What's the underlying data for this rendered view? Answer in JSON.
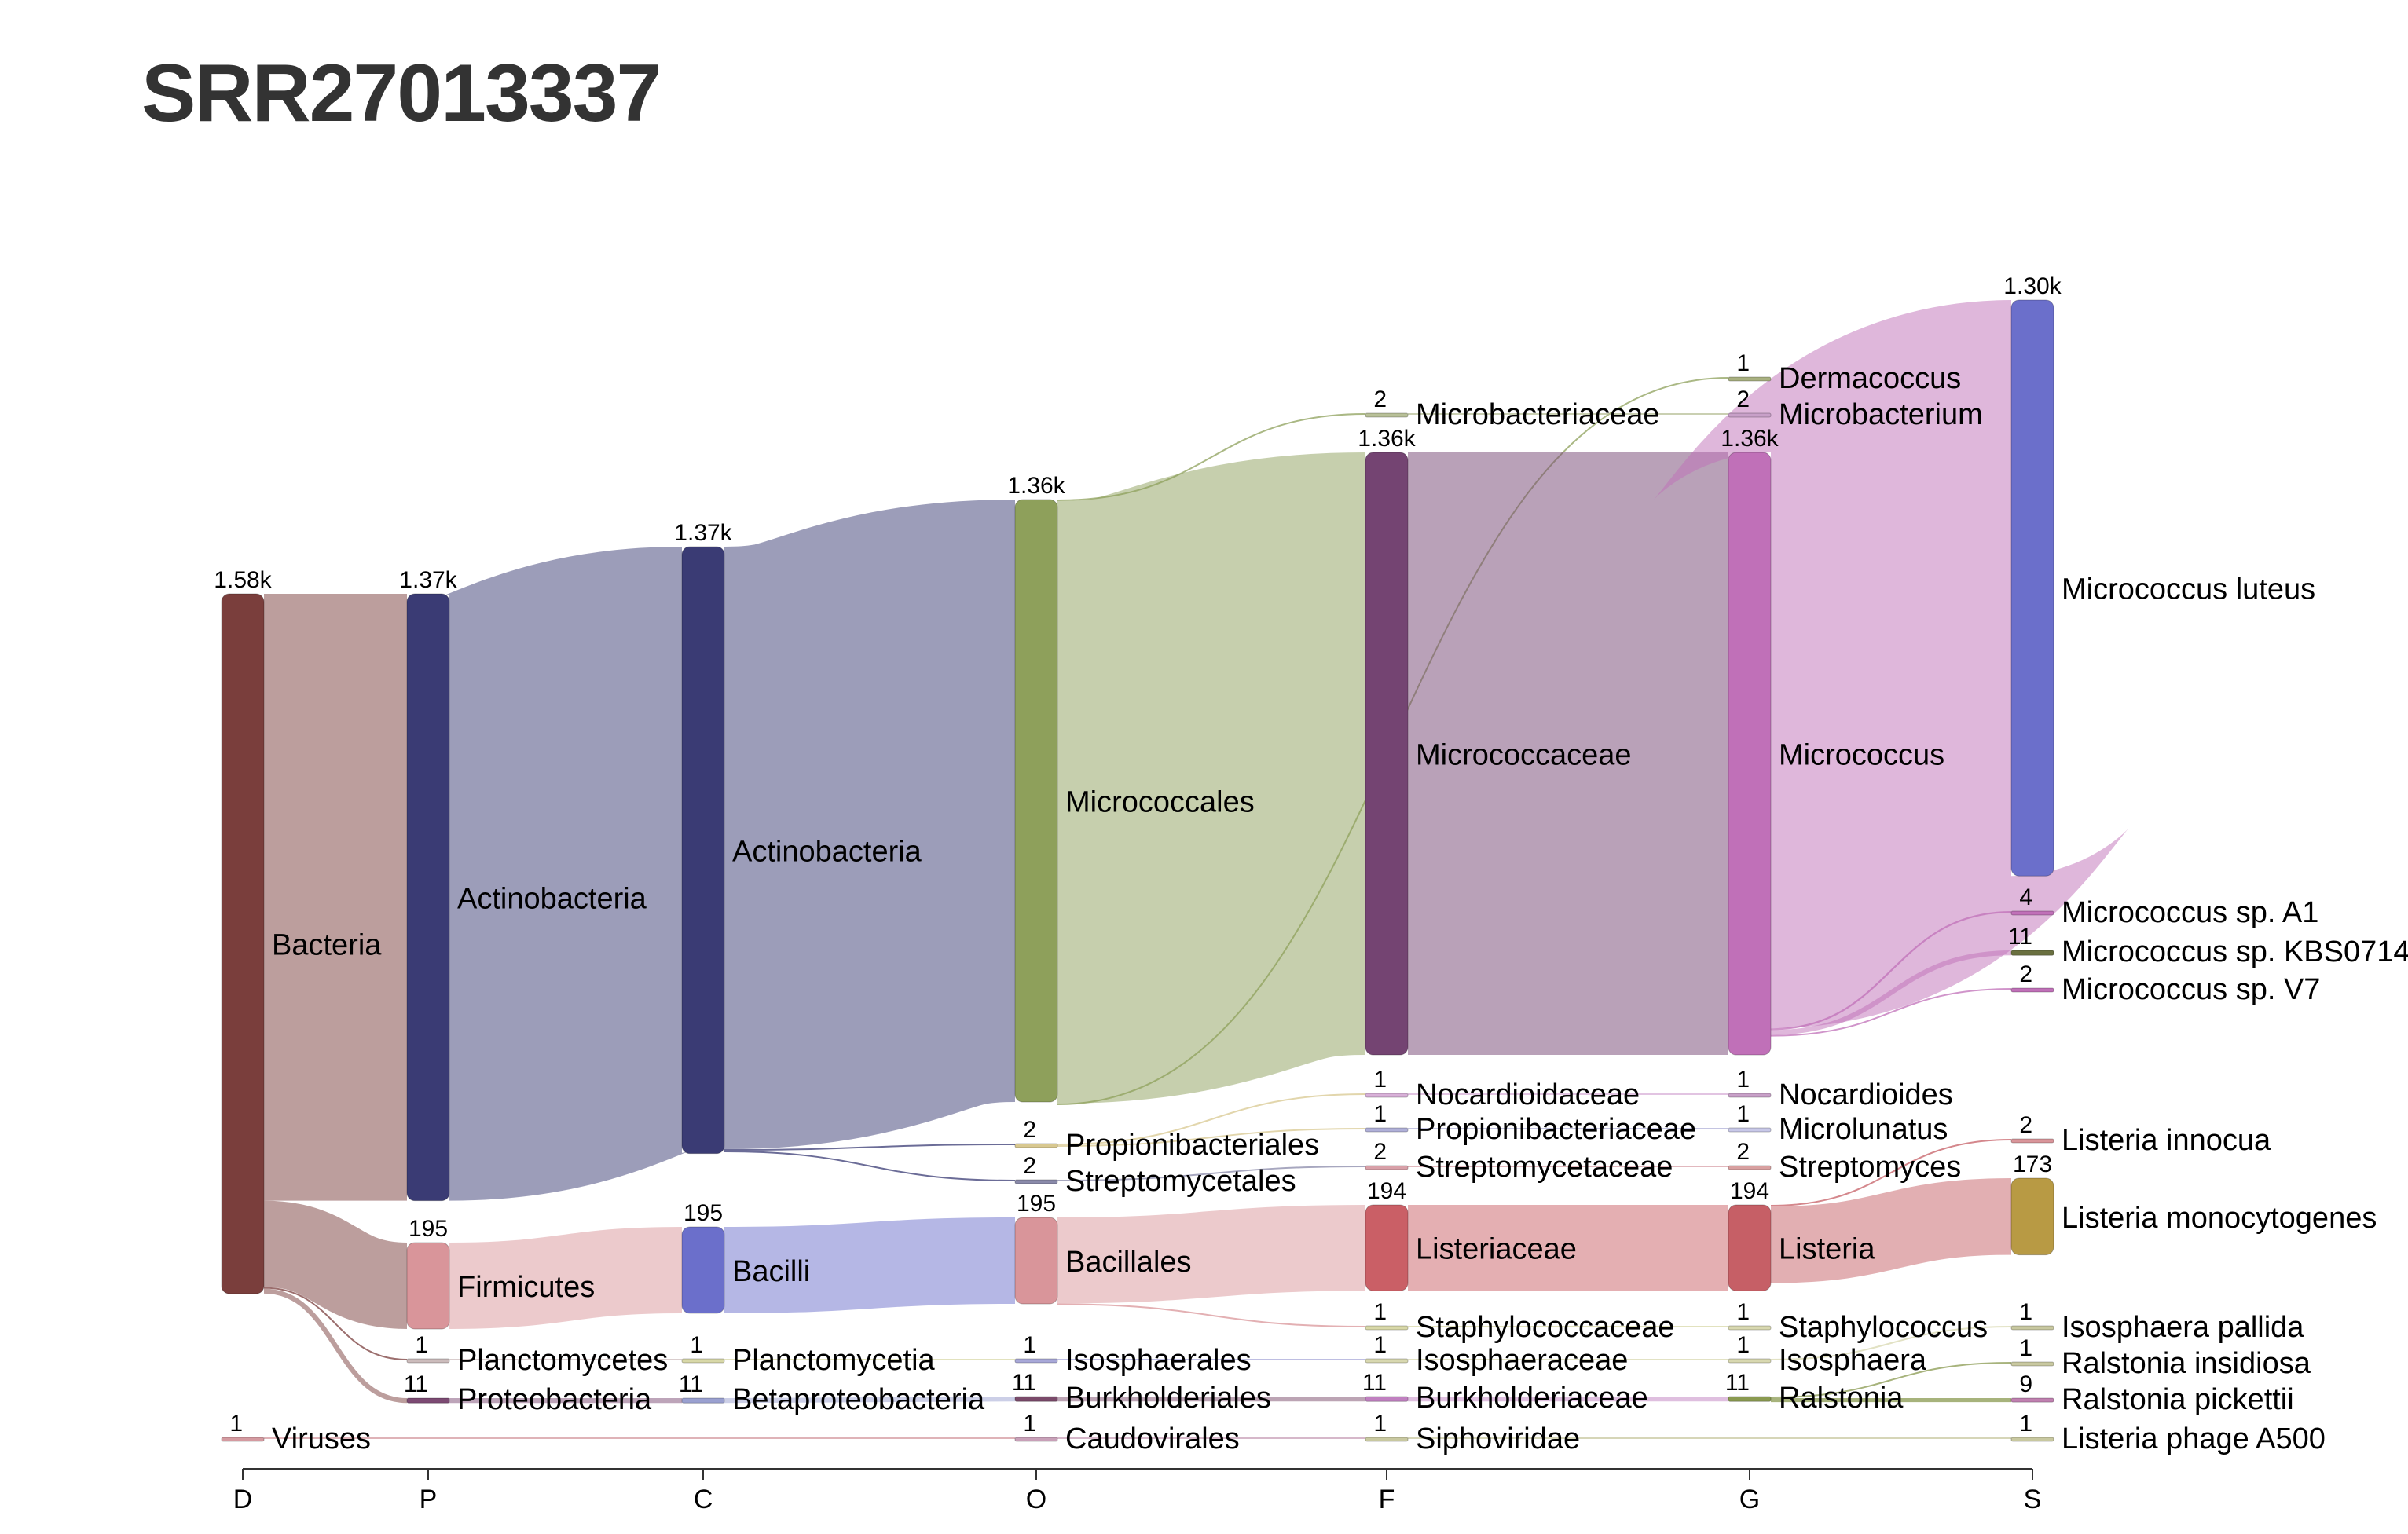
{
  "title": "SRR27013337",
  "axis": {
    "levels": [
      "D",
      "P",
      "C",
      "O",
      "F",
      "G",
      "S"
    ]
  },
  "colors": {
    "Bacteria": "#7a3e3c",
    "Viruses": "#d49aa0",
    "Actinobacteria_P": "#3a3b74",
    "Firmicutes": "#d9959a",
    "Planctomycetes": "#ccbcbc",
    "Proteobacteria": "#7c4a73",
    "Actinobacteria_C": "#3a3b74",
    "Bacilli": "#6b6fcb",
    "Planctomycetia": "#d8d8a8",
    "Betaproteobacteria": "#9aa0d0",
    "Micrococcales": "#8ea05b",
    "Bacillales": "#d9959a",
    "Propionibacteriales": "#d8c890",
    "Streptomycetales": "#8a8aaa",
    "Isosphaerales": "#a8a8d8",
    "Burkholderiales": "#7a4a6a",
    "Caudovirales": "#c8a0b8",
    "Micrococcaceae": "#744472",
    "Listeriaceae": "#ca5f66",
    "Microbacteriaceae": "#b8c098",
    "Nocardioidaceae": "#d8b0d8",
    "Propionibacteriaceae": "#b0b0d8",
    "Streptomycetaceae": "#d8a0a8",
    "Staphylococcaceae": "#d8d8a8",
    "Isosphaeraceae": "#d8d8b0",
    "Burkholderiaceae": "#c080c0",
    "Siphoviridae": "#c8c8a0",
    "Micrococcus": "#c070b8",
    "Listeria": "#c65f66",
    "Dermacoccus": "#a8b080",
    "Microbacterium": "#c8a0c8",
    "Nocardioides": "#c8a0c8",
    "Microlunatus": "#c8c8e8",
    "Streptomyces": "#d8a0a0",
    "Staphylococcus": "#d8d8b0",
    "Isosphaera": "#d8d8b0",
    "Ralstonia": "#8a9a50",
    "Micrococcus luteus": "#6b6fcb",
    "Listeria monocytogenes": "#b89a44",
    "Micrococcus sp. A1": "#c070b8",
    "Micrococcus sp. KBS0714": "#6a7040",
    "Micrococcus sp. V7": "#c070b8",
    "Listeria innocua": "#d9959a",
    "Isosphaera pallida": "#c8c8a0",
    "Ralstonia insidiosa": "#c8c8a0",
    "Ralstonia pickettii": "#c080b0",
    "Listeria phage A500": "#c8c8a0"
  },
  "nodes": [
    {
      "id": "Bacteria",
      "label": "Bacteria",
      "level": 0,
      "value": 1580,
      "count": "1.58k"
    },
    {
      "id": "Viruses",
      "label": "Viruses",
      "level": 0,
      "value": 1,
      "count": "1"
    },
    {
      "id": "Actinobacteria_P",
      "label": "Actinobacteria",
      "level": 1,
      "value": 1370,
      "count": "1.37k"
    },
    {
      "id": "Firmicutes",
      "label": "Firmicutes",
      "level": 1,
      "value": 195,
      "count": "195"
    },
    {
      "id": "Planctomycetes",
      "label": "Planctomycetes",
      "level": 1,
      "value": 1,
      "count": "1"
    },
    {
      "id": "Proteobacteria",
      "label": "Proteobacteria",
      "level": 1,
      "value": 11,
      "count": "11"
    },
    {
      "id": "Actinobacteria_C",
      "label": "Actinobacteria",
      "level": 2,
      "value": 1370,
      "count": "1.37k"
    },
    {
      "id": "Bacilli",
      "label": "Bacilli",
      "level": 2,
      "value": 195,
      "count": "195"
    },
    {
      "id": "Planctomycetia",
      "label": "Planctomycetia",
      "level": 2,
      "value": 1,
      "count": "1"
    },
    {
      "id": "Betaproteobacteria",
      "label": "Betaproteobacteria",
      "level": 2,
      "value": 11,
      "count": "11"
    },
    {
      "id": "Micrococcales",
      "label": "Micrococcales",
      "level": 3,
      "value": 1360,
      "count": "1.36k"
    },
    {
      "id": "Propionibacteriales",
      "label": "Propionibacteriales",
      "level": 3,
      "value": 2,
      "count": "2"
    },
    {
      "id": "Streptomycetales",
      "label": "Streptomycetales",
      "level": 3,
      "value": 2,
      "count": "2"
    },
    {
      "id": "Bacillales",
      "label": "Bacillales",
      "level": 3,
      "value": 195,
      "count": "195"
    },
    {
      "id": "Isosphaerales",
      "label": "Isosphaerales",
      "level": 3,
      "value": 1,
      "count": "1"
    },
    {
      "id": "Burkholderiales",
      "label": "Burkholderiales",
      "level": 3,
      "value": 11,
      "count": "11"
    },
    {
      "id": "Caudovirales",
      "label": "Caudovirales",
      "level": 3,
      "value": 1,
      "count": "1"
    },
    {
      "id": "Microbacteriaceae",
      "label": "Microbacteriaceae",
      "level": 4,
      "value": 2,
      "count": "2"
    },
    {
      "id": "Micrococcaceae",
      "label": "Micrococcaceae",
      "level": 4,
      "value": 1360,
      "count": "1.36k"
    },
    {
      "id": "Nocardioidaceae",
      "label": "Nocardioidaceae",
      "level": 4,
      "value": 1,
      "count": "1"
    },
    {
      "id": "Propionibacteriaceae",
      "label": "Propionibacteriaceae",
      "level": 4,
      "value": 1,
      "count": "1"
    },
    {
      "id": "Streptomycetaceae",
      "label": "Streptomycetaceae",
      "level": 4,
      "value": 2,
      "count": "2"
    },
    {
      "id": "Listeriaceae",
      "label": "Listeriaceae",
      "level": 4,
      "value": 194,
      "count": "194"
    },
    {
      "id": "Staphylococcaceae",
      "label": "Staphylococcaceae",
      "level": 4,
      "value": 1,
      "count": "1"
    },
    {
      "id": "Isosphaeraceae",
      "label": "Isosphaeraceae",
      "level": 4,
      "value": 1,
      "count": "1"
    },
    {
      "id": "Burkholderiaceae",
      "label": "Burkholderiaceae",
      "level": 4,
      "value": 11,
      "count": "11"
    },
    {
      "id": "Siphoviridae",
      "label": "Siphoviridae",
      "level": 4,
      "value": 1,
      "count": "1"
    },
    {
      "id": "Dermacoccus",
      "label": "Dermacoccus",
      "level": 5,
      "value": 1,
      "count": "1"
    },
    {
      "id": "Microbacterium",
      "label": "Microbacterium",
      "level": 5,
      "value": 2,
      "count": "2"
    },
    {
      "id": "Micrococcus",
      "label": "Micrococcus",
      "level": 5,
      "value": 1360,
      "count": "1.36k"
    },
    {
      "id": "Nocardioides",
      "label": "Nocardioides",
      "level": 5,
      "value": 1,
      "count": "1"
    },
    {
      "id": "Microlunatus",
      "label": "Microlunatus",
      "level": 5,
      "value": 1,
      "count": "1"
    },
    {
      "id": "Streptomyces",
      "label": "Streptomyces",
      "level": 5,
      "value": 2,
      "count": "2"
    },
    {
      "id": "Listeria",
      "label": "Listeria",
      "level": 5,
      "value": 194,
      "count": "194"
    },
    {
      "id": "Staphylococcus",
      "label": "Staphylococcus",
      "level": 5,
      "value": 1,
      "count": "1"
    },
    {
      "id": "Isosphaera",
      "label": "Isosphaera",
      "level": 5,
      "value": 1,
      "count": "1"
    },
    {
      "id": "Ralstonia",
      "label": "Ralstonia",
      "level": 5,
      "value": 11,
      "count": "11"
    },
    {
      "id": "Micrococcus luteus",
      "label": "Micrococcus luteus",
      "level": 6,
      "value": 1300,
      "count": "1.30k"
    },
    {
      "id": "Micrococcus sp. A1",
      "label": "Micrococcus sp. A1",
      "level": 6,
      "value": 4,
      "count": "4"
    },
    {
      "id": "Micrococcus sp. KBS0714",
      "label": "Micrococcus sp. KBS0714",
      "level": 6,
      "value": 11,
      "count": "11"
    },
    {
      "id": "Micrococcus sp. V7",
      "label": "Micrococcus sp. V7",
      "level": 6,
      "value": 2,
      "count": "2"
    },
    {
      "id": "Listeria innocua",
      "label": "Listeria innocua",
      "level": 6,
      "value": 2,
      "count": "2"
    },
    {
      "id": "Listeria monocytogenes",
      "label": "Listeria monocytogenes",
      "level": 6,
      "value": 173,
      "count": "173"
    },
    {
      "id": "Isosphaera pallida",
      "label": "Isosphaera pallida",
      "level": 6,
      "value": 1,
      "count": "1"
    },
    {
      "id": "Ralstonia insidiosa",
      "label": "Ralstonia insidiosa",
      "level": 6,
      "value": 1,
      "count": "1"
    },
    {
      "id": "Ralstonia pickettii",
      "label": "Ralstonia pickettii",
      "level": 6,
      "value": 9,
      "count": "9"
    },
    {
      "id": "Listeria phage A500",
      "label": "Listeria phage A500",
      "level": 6,
      "value": 1,
      "count": "1"
    }
  ],
  "links": [
    {
      "source": "Bacteria",
      "target": "Actinobacteria_P",
      "value": 1370
    },
    {
      "source": "Bacteria",
      "target": "Firmicutes",
      "value": 195
    },
    {
      "source": "Bacteria",
      "target": "Planctomycetes",
      "value": 1
    },
    {
      "source": "Bacteria",
      "target": "Proteobacteria",
      "value": 11
    },
    {
      "source": "Actinobacteria_P",
      "target": "Actinobacteria_C",
      "value": 1370
    },
    {
      "source": "Firmicutes",
      "target": "Bacilli",
      "value": 195
    },
    {
      "source": "Planctomycetes",
      "target": "Planctomycetia",
      "value": 1
    },
    {
      "source": "Proteobacteria",
      "target": "Betaproteobacteria",
      "value": 11
    },
    {
      "source": "Actinobacteria_C",
      "target": "Micrococcales",
      "value": 1360
    },
    {
      "source": "Actinobacteria_C",
      "target": "Propionibacteriales",
      "value": 2
    },
    {
      "source": "Actinobacteria_C",
      "target": "Streptomycetales",
      "value": 2
    },
    {
      "source": "Bacilli",
      "target": "Bacillales",
      "value": 195
    },
    {
      "source": "Planctomycetia",
      "target": "Isosphaerales",
      "value": 1
    },
    {
      "source": "Betaproteobacteria",
      "target": "Burkholderiales",
      "value": 11
    },
    {
      "source": "Viruses",
      "target": "Caudovirales",
      "value": 1
    },
    {
      "source": "Micrococcales",
      "target": "Microbacteriaceae",
      "value": 2
    },
    {
      "source": "Micrococcales",
      "target": "Micrococcaceae",
      "value": 1360
    },
    {
      "source": "Propionibacteriales",
      "target": "Nocardioidaceae",
      "value": 1
    },
    {
      "source": "Propionibacteriales",
      "target": "Propionibacteriaceae",
      "value": 1
    },
    {
      "source": "Streptomycetales",
      "target": "Streptomycetaceae",
      "value": 2
    },
    {
      "source": "Bacillales",
      "target": "Listeriaceae",
      "value": 194
    },
    {
      "source": "Bacillales",
      "target": "Staphylococcaceae",
      "value": 1
    },
    {
      "source": "Isosphaerales",
      "target": "Isosphaeraceae",
      "value": 1
    },
    {
      "source": "Burkholderiales",
      "target": "Burkholderiaceae",
      "value": 11
    },
    {
      "source": "Caudovirales",
      "target": "Siphoviridae",
      "value": 1
    },
    {
      "source": "Micrococcales",
      "target": "Dermacoccus",
      "value": 1
    },
    {
      "source": "Microbacteriaceae",
      "target": "Microbacterium",
      "value": 2
    },
    {
      "source": "Micrococcaceae",
      "target": "Micrococcus",
      "value": 1360
    },
    {
      "source": "Nocardioidaceae",
      "target": "Nocardioides",
      "value": 1
    },
    {
      "source": "Propionibacteriaceae",
      "target": "Microlunatus",
      "value": 1
    },
    {
      "source": "Streptomycetaceae",
      "target": "Streptomyces",
      "value": 2
    },
    {
      "source": "Listeriaceae",
      "target": "Listeria",
      "value": 194
    },
    {
      "source": "Staphylococcaceae",
      "target": "Staphylococcus",
      "value": 1
    },
    {
      "source": "Isosphaeraceae",
      "target": "Isosphaera",
      "value": 1
    },
    {
      "source": "Burkholderiaceae",
      "target": "Ralstonia",
      "value": 11
    },
    {
      "source": "Micrococcus",
      "target": "Micrococcus luteus",
      "value": 1300
    },
    {
      "source": "Micrococcus",
      "target": "Micrococcus sp. A1",
      "value": 4
    },
    {
      "source": "Micrococcus",
      "target": "Micrococcus sp. KBS0714",
      "value": 11
    },
    {
      "source": "Micrococcus",
      "target": "Micrococcus sp. V7",
      "value": 2
    },
    {
      "source": "Listeria",
      "target": "Listeria innocua",
      "value": 2
    },
    {
      "source": "Listeria",
      "target": "Listeria monocytogenes",
      "value": 173
    },
    {
      "source": "Isosphaera",
      "target": "Isosphaera pallida",
      "value": 1
    },
    {
      "source": "Ralstonia",
      "target": "Ralstonia insidiosa",
      "value": 1
    },
    {
      "source": "Ralstonia",
      "target": "Ralstonia pickettii",
      "value": 9
    },
    {
      "source": "Siphoviridae",
      "target": "Listeria phage A500",
      "value": 1
    }
  ]
}
